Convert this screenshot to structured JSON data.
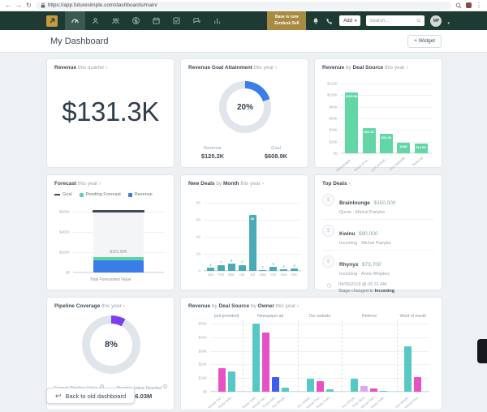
{
  "browser": {
    "url": "https://app.futuresimple.com/dashboards/main/"
  },
  "navbar": {
    "badge": [
      "Base is now",
      "Zendesk Sell"
    ],
    "add_label": "Add",
    "search_placeholder": "Search...",
    "avatar_initials": "MP"
  },
  "header": {
    "title": "My Dashboard",
    "widget_button": "+ Widget"
  },
  "cards": {
    "revenue": {
      "title": [
        "Revenue",
        " this quarter ›"
      ],
      "value": "$131.3K"
    },
    "goal": {
      "title": [
        "Revenue Goal Attainment",
        " this year ›"
      ]
    },
    "deal_source": {
      "title": [
        "Revenue",
        " by ",
        "Deal Source",
        " this year ›"
      ]
    },
    "forecast": {
      "title": [
        "Forecast",
        " this year ›"
      ]
    },
    "new_deals": {
      "title": [
        "New Deals",
        " by ",
        "Month",
        " this year ›"
      ]
    },
    "top_deals": {
      "title": [
        "Top Deals",
        " ›"
      ],
      "items": [
        {
          "name": "Brainlounge",
          "value": "$350,000",
          "meta": "Quote · Michal Partyka"
        },
        {
          "name": "Kwinu",
          "value": "$90,000",
          "meta": "Incoming · Michal Partyka"
        },
        {
          "name": "Rhynyx",
          "value": "$73,700",
          "meta": "Incoming · Anna Whipkey"
        }
      ],
      "timeline": {
        "timestamp": "04/06/2018 @ 06:31 AM",
        "text": "Stage changed to ",
        "stage": "Incoming"
      },
      "show_more": "Show more..."
    },
    "pipeline": {
      "title": [
        "Pipeline Coverage",
        " this year ›"
      ]
    },
    "source_owner": {
      "title": [
        "Revenue",
        " by ",
        "Deal Source",
        " by ",
        "Owner",
        " this year ›"
      ]
    }
  },
  "footer": {
    "back_button": "Back to old dashboard"
  },
  "chart_data": [
    {
      "id": "revenue_goal_attainment",
      "type": "donut",
      "title": "Revenue Goal Attainment this year",
      "percent": 20,
      "center_label": "20%",
      "arc_color": "#3a7de8",
      "track_color": "#dfe5ea",
      "stats": [
        {
          "label": "Revenue",
          "value": "$120.2K"
        },
        {
          "label": "Goal",
          "value": "$608.9K"
        }
      ]
    },
    {
      "id": "revenue_by_deal_source",
      "type": "bar",
      "title": "Revenue by Deal Source this year",
      "categories": [
        "Newspaper ad",
        "Word of mouth",
        "(not provided)",
        "Our website",
        "Referral"
      ],
      "values": [
        105.3,
        43.1,
        33.1,
        18,
        16.9
      ],
      "bar_labels": [
        "$105.3K",
        "$43.1K",
        "$33.1K",
        "$18K",
        "$16.9K"
      ],
      "ylabel": "USD thousands",
      "ylim": [
        0,
        120
      ],
      "yticks": [
        0,
        20,
        40,
        60,
        80,
        100,
        120
      ],
      "ytick_labels": [
        "$0",
        "$20K",
        "$40K",
        "$60K",
        "$80K",
        "$100K",
        "$120K"
      ],
      "bar_color": "#63d6a6"
    },
    {
      "id": "forecast",
      "type": "stacked-bar",
      "title": "Forecast this year",
      "categories": [
        "Total Forecasted Value"
      ],
      "xlabel": "Total Forecasted Value",
      "legend": [
        "Goal",
        "Pending Forecast",
        "Revenue"
      ],
      "goal": 608.9,
      "goal_color": "#3f4a56",
      "segments": [
        {
          "name": "Revenue",
          "value": 120.2,
          "color": "#3a7de8"
        },
        {
          "name": "Pending Forecast",
          "value": 31.76,
          "color": "#5ed3a2"
        },
        {
          "name": "Remaining to goal",
          "value": 456.94,
          "color": "#f3f5f7"
        }
      ],
      "total_label": "$151.96K",
      "ylim": [
        0,
        620
      ],
      "yticks": [
        0,
        200,
        400,
        600
      ],
      "ytick_labels": [
        "$0",
        "$200K",
        "$400K",
        "$600K"
      ]
    },
    {
      "id": "new_deals_by_month",
      "type": "bar",
      "title": "New Deals by Month this year",
      "categories": [
        "Jan",
        "Feb",
        "Mar",
        "Apr",
        "Jul",
        "Sep",
        "Oct",
        "Nov",
        "Dec"
      ],
      "values": [
        4,
        7,
        9,
        7,
        66,
        1,
        5,
        2,
        3
      ],
      "ylim": [
        0,
        80
      ],
      "yticks": [
        0,
        20,
        40,
        60,
        80
      ],
      "ytick_labels": [
        "0",
        "20",
        "40",
        "60",
        "80"
      ],
      "bar_color": "#4aabb8"
    },
    {
      "id": "pipeline_coverage",
      "type": "donut",
      "title": "Pipeline Coverage this year",
      "percent": 8,
      "center_label": "8%",
      "arc_color": "#7d3cf0",
      "track_color": "#dfe5ea",
      "stats": [
        {
          "label": "Current Pipeline Value",
          "value": ""
        },
        {
          "label": "Pipeline Value Needed",
          "value": "$6.03M"
        }
      ]
    },
    {
      "id": "revenue_by_deal_source_by_owner",
      "type": "grouped-bar",
      "title": "Revenue by Deal Source by Owner this year",
      "ylim": [
        0,
        50
      ],
      "yticks": [
        0,
        10,
        20,
        30,
        40,
        50
      ],
      "ytick_labels": [
        "$0",
        "$10K",
        "$20K",
        "$30K",
        "$40K",
        "$50K"
      ],
      "groups": [
        {
          "label": "(not provided)",
          "bars": [
            {
              "owner": "Michal Part...",
              "value": 17.5,
              "color": "#e751c5"
            },
            {
              "owner": "Marty Gold...",
              "value": 15,
              "color": "#56c9c4"
            }
          ]
        },
        {
          "label": "Newspaper ad",
          "bars": [
            {
              "owner": "Marty Gold...",
              "value": 50,
              "color": "#56c9c4"
            },
            {
              "owner": "Michal Part...",
              "value": 43.5,
              "color": "#e751c5"
            },
            {
              "owner": "Tonya Whi...",
              "value": 10.5,
              "color": "#3b5fe8"
            },
            {
              "owner": "Ann Whipk...",
              "value": 2.8,
              "color": "#56c9c4"
            }
          ]
        },
        {
          "label": "Our website",
          "bars": [
            {
              "owner": "Ann Whipk...",
              "value": 9.5,
              "color": "#56c9c4"
            },
            {
              "owner": "Michal Part...",
              "value": 8,
              "color": "#e751c5"
            },
            {
              "owner": "Marty Gold...",
              "value": 1.5,
              "color": "#56c9c4"
            }
          ]
        },
        {
          "label": "Referral",
          "bars": [
            {
              "owner": "Ann Whipk...",
              "value": 9.5,
              "color": "#56c9c4"
            },
            {
              "owner": "Piotr Nied...",
              "value": 4,
              "color": "#d9a8f0"
            },
            {
              "owner": "Michal Part...",
              "value": 2.5,
              "color": "#e751c5"
            },
            {
              "owner": "Marty Gold...",
              "value": 0.7,
              "color": "#56c9c4"
            }
          ]
        },
        {
          "label": "Word of mouth",
          "bars": [
            {
              "owner": "Ann Whipk...",
              "value": 33.5,
              "color": "#56c9c4"
            },
            {
              "owner": "Michal Part...",
              "value": 10.5,
              "color": "#e751c5"
            }
          ]
        }
      ]
    }
  ]
}
